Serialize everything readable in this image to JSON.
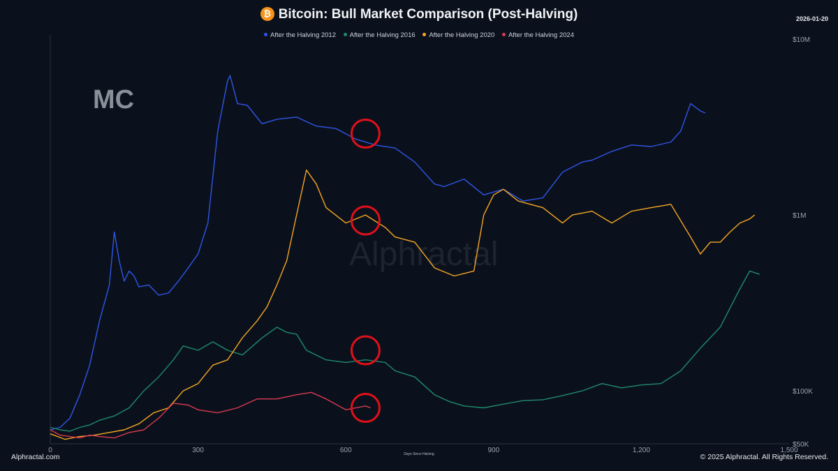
{
  "header": {
    "title": "Bitcoin: Bull Market Comparison (Post-Halving)",
    "date": "2026-01-20",
    "bitcoin_icon": "bitcoin-icon"
  },
  "footer": {
    "left": "Alphractal.com",
    "right": "© 2025 Alphractal. All Rights Reserved."
  },
  "watermark": {
    "text": "Alphractal",
    "logo": "MC"
  },
  "colors": {
    "background": "#0b111c",
    "s2012": "#2f55e8",
    "s2016": "#1f8a6e",
    "s2020": "#f5a623",
    "s2024": "#d93a52",
    "highlight": "#e0101a"
  },
  "chart_data": {
    "type": "line",
    "xlabel": "Days Since Halving",
    "ylabel": "",
    "xlim": [
      0,
      1500
    ],
    "ylim": [
      50000,
      10000000
    ],
    "yscale": "log",
    "x_ticks": [
      "0",
      "300",
      "600",
      "900",
      "1,200",
      "1,500"
    ],
    "y_ticks": [
      {
        "value": 10000000,
        "label": "$10M"
      },
      {
        "value": 1000000,
        "label": "$1M"
      },
      {
        "value": 100000,
        "label": "$100K"
      },
      {
        "value": 50000,
        "label": "$50K"
      }
    ],
    "legend_position": "top-center",
    "grid": false,
    "series": [
      {
        "name": "After the Halving 2012",
        "x": [
          0,
          20,
          40,
          60,
          80,
          100,
          120,
          130,
          140,
          150,
          160,
          170,
          180,
          200,
          220,
          240,
          260,
          280,
          300,
          320,
          340,
          360,
          365,
          370,
          380,
          400,
          430,
          460,
          500,
          540,
          580,
          620,
          660,
          700,
          740,
          780,
          800,
          840,
          880,
          920,
          960,
          1000,
          1040,
          1080,
          1100,
          1140,
          1180,
          1220,
          1260,
          1280,
          1300,
          1320,
          1330
        ],
        "y": [
          60000,
          62000,
          70000,
          95000,
          140000,
          250000,
          400000,
          800000,
          550000,
          420000,
          480000,
          450000,
          390000,
          400000,
          350000,
          360000,
          420000,
          500000,
          600000,
          900000,
          3000000,
          5800000,
          6200000,
          5500000,
          4300000,
          4200000,
          3300000,
          3500000,
          3600000,
          3200000,
          3100000,
          2700000,
          2500000,
          2400000,
          2000000,
          1500000,
          1450000,
          1600000,
          1300000,
          1400000,
          1200000,
          1250000,
          1750000,
          2000000,
          2050000,
          2300000,
          2500000,
          2450000,
          2600000,
          3000000,
          4300000,
          3900000,
          3800000
        ]
      },
      {
        "name": "After the Halving 2016",
        "x": [
          0,
          20,
          40,
          60,
          80,
          100,
          130,
          160,
          190,
          220,
          250,
          270,
          300,
          330,
          360,
          390,
          430,
          460,
          480,
          500,
          520,
          560,
          600,
          640,
          680,
          700,
          740,
          780,
          810,
          840,
          880,
          920,
          960,
          1000,
          1040,
          1080,
          1120,
          1160,
          1200,
          1240,
          1280,
          1320,
          1360,
          1400,
          1420,
          1440
        ],
        "y": [
          62000,
          60000,
          59000,
          62000,
          64000,
          68000,
          72000,
          80000,
          100000,
          120000,
          150000,
          180000,
          170000,
          190000,
          170000,
          160000,
          200000,
          230000,
          215000,
          210000,
          170000,
          150000,
          145000,
          150000,
          145000,
          130000,
          120000,
          95000,
          87000,
          82000,
          80000,
          84000,
          88000,
          89000,
          94000,
          100000,
          110000,
          104000,
          108000,
          110000,
          130000,
          175000,
          230000,
          380000,
          480000,
          460000
        ]
      },
      {
        "name": "After the Halving 2020",
        "x": [
          0,
          30,
          60,
          90,
          120,
          150,
          180,
          210,
          240,
          270,
          300,
          330,
          360,
          390,
          420,
          440,
          460,
          480,
          500,
          520,
          540,
          560,
          600,
          640,
          680,
          700,
          740,
          780,
          820,
          860,
          880,
          900,
          920,
          950,
          1000,
          1040,
          1060,
          1100,
          1140,
          1180,
          1220,
          1260,
          1300,
          1320,
          1340,
          1360,
          1380,
          1400,
          1420,
          1430
        ],
        "y": [
          57000,
          53000,
          55000,
          56000,
          58000,
          60000,
          65000,
          75000,
          80000,
          100000,
          110000,
          140000,
          150000,
          200000,
          250000,
          300000,
          400000,
          550000,
          1000000,
          1800000,
          1500000,
          1100000,
          900000,
          1000000,
          850000,
          750000,
          700000,
          500000,
          450000,
          480000,
          1000000,
          1300000,
          1400000,
          1200000,
          1100000,
          900000,
          1000000,
          1050000,
          900000,
          1050000,
          1100000,
          1150000,
          750000,
          600000,
          700000,
          700000,
          800000,
          900000,
          950000,
          1000000
        ]
      },
      {
        "name": "After the Halving 2024",
        "x": [
          0,
          20,
          40,
          60,
          80,
          100,
          130,
          160,
          190,
          220,
          250,
          280,
          300,
          340,
          380,
          420,
          460,
          500,
          530,
          560,
          600,
          620,
          640,
          650
        ],
        "y": [
          60000,
          56000,
          55000,
          54000,
          56000,
          55000,
          54000,
          58000,
          60000,
          70000,
          85000,
          83000,
          78000,
          75000,
          80000,
          90000,
          90000,
          95000,
          98000,
          90000,
          78000,
          80000,
          82000,
          80000
        ]
      }
    ],
    "highlights": [
      {
        "x": 640,
        "y": 2900000
      },
      {
        "x": 640,
        "y": 930000
      },
      {
        "x": 640,
        "y": 170000
      },
      {
        "x": 640,
        "y": 80000
      }
    ]
  }
}
